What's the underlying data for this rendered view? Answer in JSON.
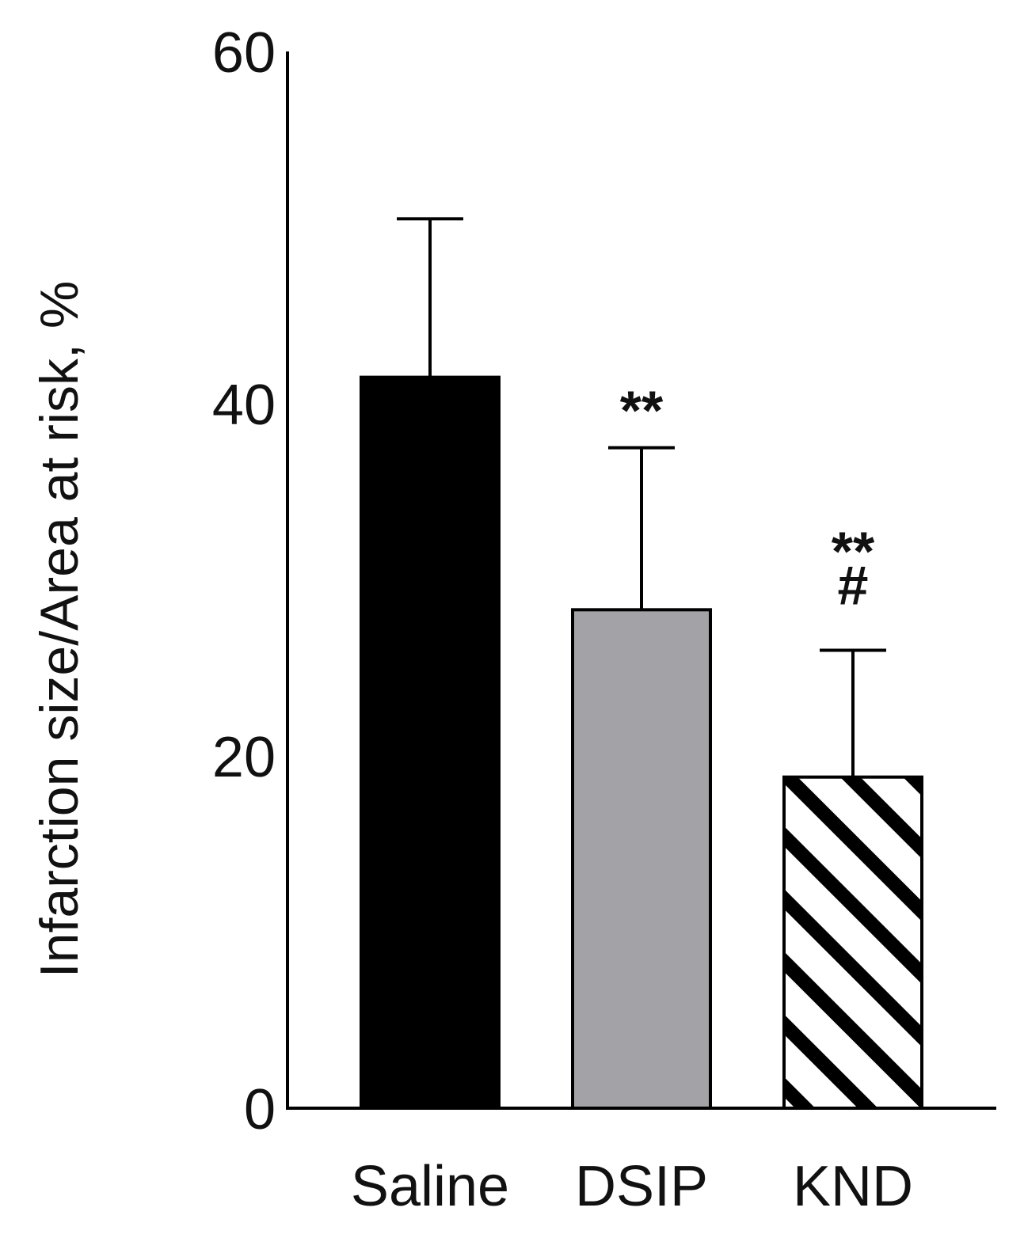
{
  "chart_data": {
    "type": "bar",
    "title": "",
    "xlabel": "",
    "ylabel": "Infarction size/Area at risk, %",
    "ylim": [
      0,
      60
    ],
    "yticks": [
      0,
      20,
      40,
      60
    ],
    "categories": [
      "Saline",
      "DSIP",
      "KND"
    ],
    "values": [
      41.5,
      28.3,
      18.8
    ],
    "errors": [
      9.0,
      9.2,
      7.2
    ],
    "annotations": [
      [
        "**"
      ],
      [
        "**",
        "#"
      ]
    ],
    "annotation_bars": [
      1,
      2
    ],
    "bar_styles": [
      {
        "fill": "#000000",
        "pattern": "solid"
      },
      {
        "fill": "#a3a2a7",
        "pattern": "solid"
      },
      {
        "fill": "#ffffff",
        "pattern": "diagonal-stripes"
      }
    ],
    "grid": false,
    "legend": "none"
  }
}
